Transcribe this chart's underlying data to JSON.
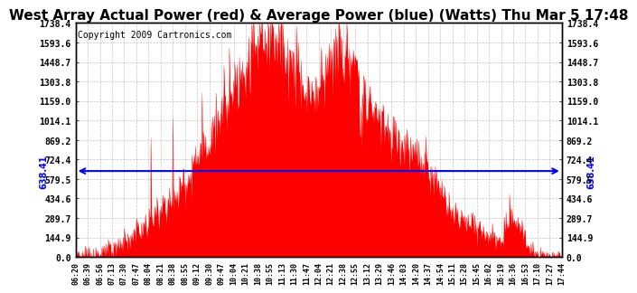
{
  "title": "West Array Actual Power (red) & Average Power (blue) (Watts) Thu Mar 5 17:48",
  "copyright": "Copyright 2009 Cartronics.com",
  "average_power": 638.41,
  "y_max": 1738.4,
  "y_ticks": [
    0.0,
    144.9,
    289.7,
    434.6,
    579.5,
    724.4,
    869.2,
    1014.1,
    1159.0,
    1303.8,
    1448.7,
    1593.6,
    1738.4
  ],
  "x_labels": [
    "06:20",
    "06:39",
    "06:56",
    "07:13",
    "07:30",
    "07:47",
    "08:04",
    "08:21",
    "08:38",
    "08:55",
    "09:12",
    "09:30",
    "09:47",
    "10:04",
    "10:21",
    "10:38",
    "10:55",
    "11:13",
    "11:30",
    "11:47",
    "12:04",
    "12:21",
    "12:38",
    "12:55",
    "13:12",
    "13:29",
    "13:46",
    "14:03",
    "14:20",
    "14:37",
    "14:54",
    "15:11",
    "15:28",
    "15:45",
    "16:02",
    "16:19",
    "16:36",
    "16:53",
    "17:10",
    "17:27",
    "17:44"
  ],
  "background_color": "#ffffff",
  "fill_color": "#ff0000",
  "line_color": "#0000ff",
  "grid_color": "#aaaaaa",
  "title_font_size": 11,
  "copyright_font_size": 7
}
